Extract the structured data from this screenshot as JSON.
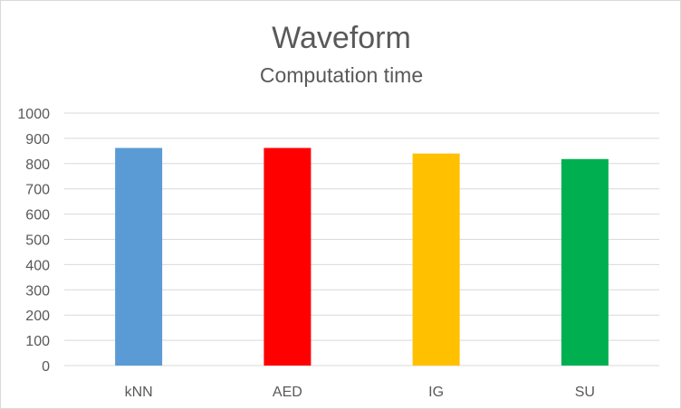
{
  "chart_data": {
    "type": "bar",
    "title": "Waveform",
    "subtitle": "Computation time",
    "xlabel": "",
    "ylabel": "",
    "categories": [
      "kNN",
      "AED",
      "IG",
      "SU"
    ],
    "values": [
      862,
      862,
      840,
      818
    ],
    "colors": [
      "#5b9bd5",
      "#ff0000",
      "#ffc000",
      "#00b050"
    ],
    "ylim": [
      0,
      1000
    ],
    "yticks": [
      "0",
      "100",
      "200",
      "300",
      "400",
      "500",
      "600",
      "700",
      "800",
      "900",
      "1000"
    ],
    "grid": true,
    "legend": "none"
  }
}
